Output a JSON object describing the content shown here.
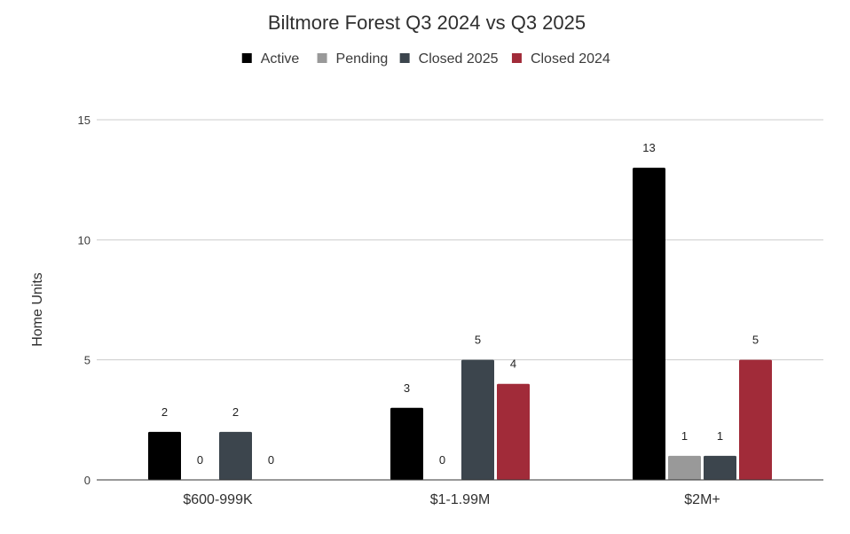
{
  "chart_data": {
    "type": "bar",
    "title": "Biltmore Forest Q3 2024 vs Q3 2025",
    "xlabel": "",
    "ylabel": "Home Units",
    "ylim": [
      0,
      15
    ],
    "yticks": [
      0,
      5,
      10,
      15
    ],
    "grid": true,
    "legend_position": "top-center",
    "categories": [
      "$600-999K",
      "$1-1.99M",
      "$2M+"
    ],
    "series": [
      {
        "name": "Active",
        "color": "#000000",
        "values": [
          2,
          3,
          13
        ]
      },
      {
        "name": "Pending",
        "color": "#999999",
        "values": [
          0,
          0,
          1
        ]
      },
      {
        "name": "Closed 2025",
        "color": "#3c454d",
        "values": [
          2,
          5,
          1
        ]
      },
      {
        "name": "Closed 2024",
        "color": "#a12b39",
        "values": [
          0,
          4,
          5
        ]
      }
    ]
  }
}
